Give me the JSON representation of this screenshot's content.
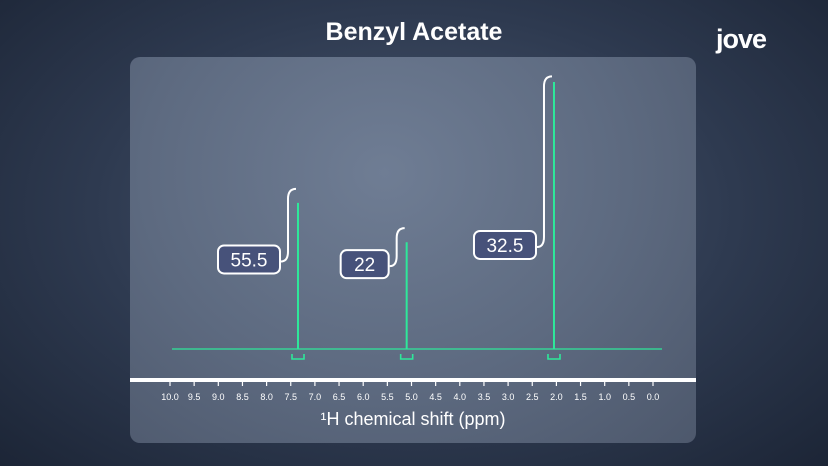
{
  "title": "Benzyl Acetate",
  "logo": "jove",
  "chart_data": {
    "type": "line",
    "title": "Benzyl Acetate",
    "xlabel": "¹H chemical shift (ppm)",
    "ylabel": "",
    "xlim": [
      10.0,
      0.0
    ],
    "x_reversed": true,
    "ticks": [
      "10.0",
      "9.5",
      "9.0",
      "8.5",
      "8.0",
      "7.5",
      "7.0",
      "6.5",
      "6.0",
      "5.5",
      "5.0",
      "4.5",
      "4.0",
      "3.5",
      "3.0",
      "2.5",
      "2.0",
      "1.5",
      "1.0",
      "0.5",
      "0.0"
    ],
    "ylim": [
      0,
      1.0
    ],
    "line_color": "#2ee89a",
    "peaks": [
      {
        "shift": 7.35,
        "height": 0.52,
        "integration": "55.5",
        "integral_top": 0.57
      },
      {
        "shift": 5.1,
        "height": 0.38,
        "integration": "22",
        "integral_top": 0.43
      },
      {
        "shift": 2.05,
        "height": 0.95,
        "integration": "32.5",
        "integral_top": 0.97
      }
    ]
  }
}
